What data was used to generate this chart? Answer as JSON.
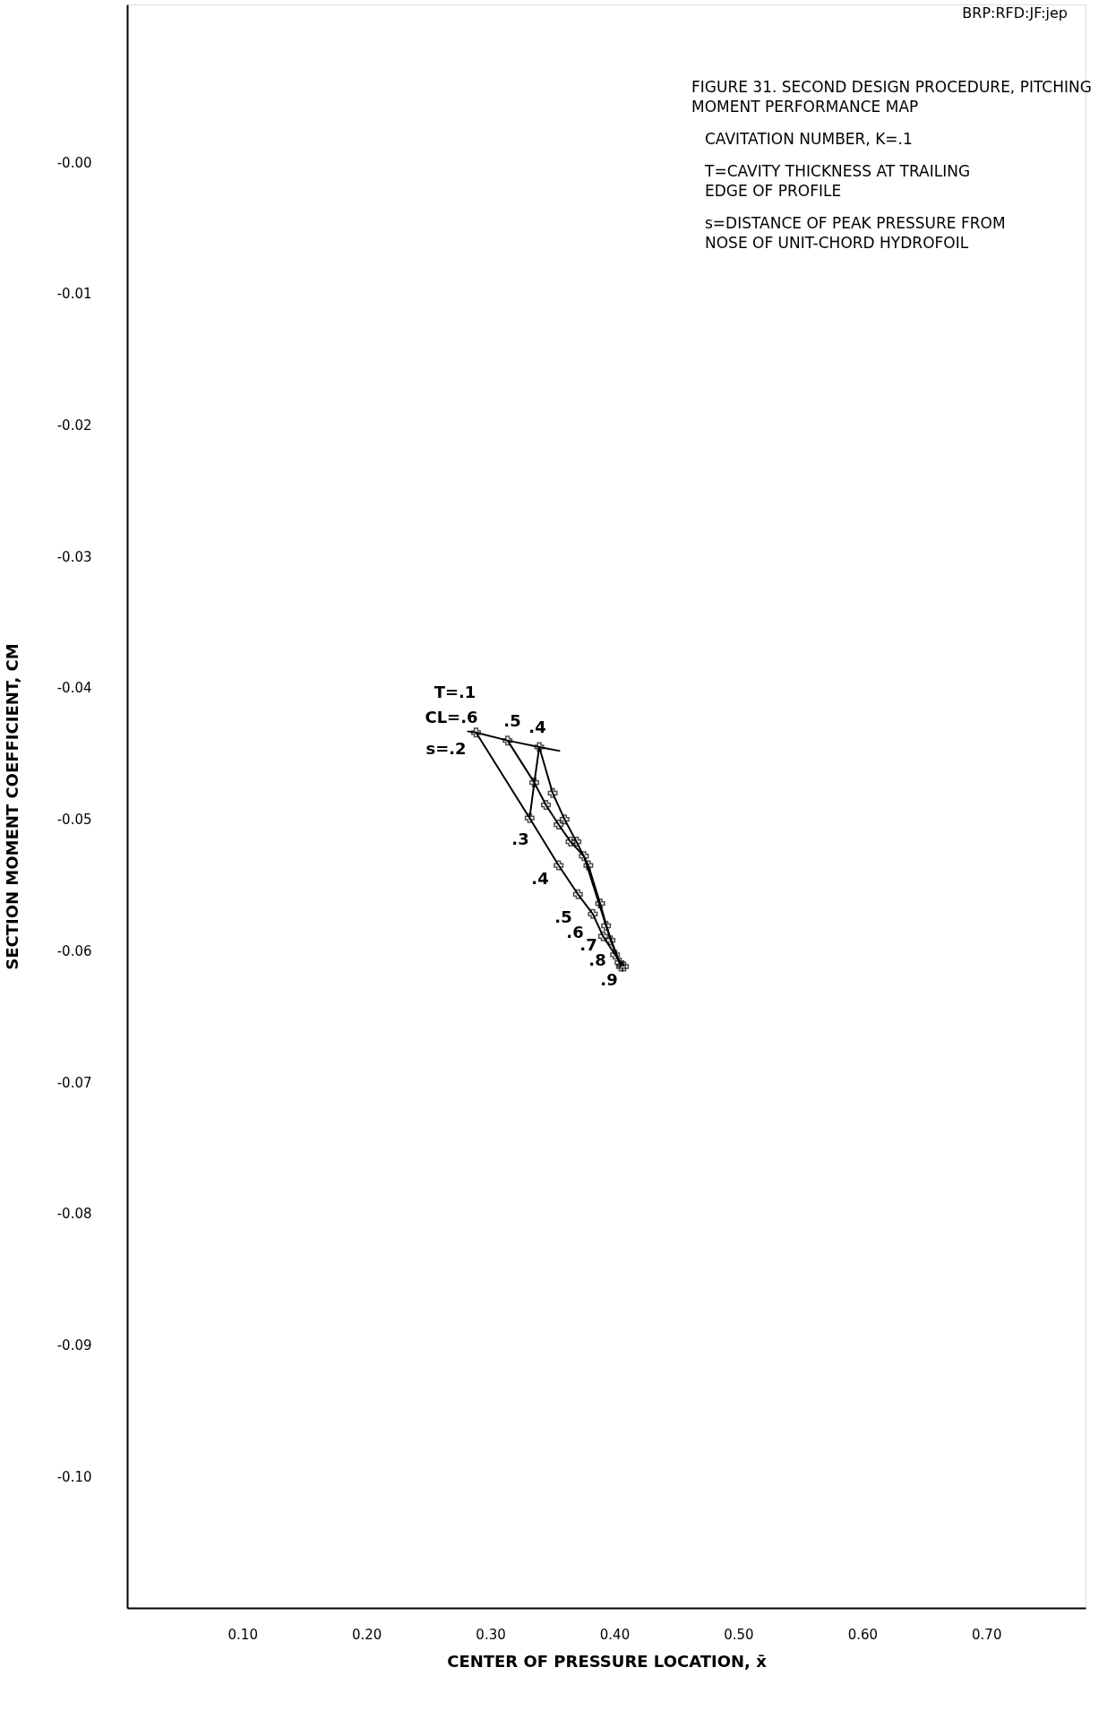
{
  "chart_data": {
    "type": "line",
    "title": "FIGURE 31. SECOND DESIGN PROCEDURE, PITCHING\nMOMENT PERFORMANCE MAP",
    "xlabel": "CENTER OF PRESSURE LOCATION, x̄",
    "ylabel": "SECTION MOMENT COEFFICIENT, CM",
    "xlim": [
      0.007,
      0.78
    ],
    "ylim": [
      -0.11,
      0.012
    ],
    "xticks": [
      {
        "value": 0.1,
        "label": "0.10"
      },
      {
        "value": 0.2,
        "label": "0.20"
      },
      {
        "value": 0.3,
        "label": "0.30"
      },
      {
        "value": 0.4,
        "label": "0.40"
      },
      {
        "value": 0.5,
        "label": "0.50"
      },
      {
        "value": 0.6,
        "label": "0.60"
      },
      {
        "value": 0.7,
        "label": "0.70"
      }
    ],
    "yticks": [
      {
        "value": 0,
        "label": "-0.00"
      },
      -0.01,
      -0.02,
      -0.03,
      -0.04,
      -0.05,
      -0.06,
      -0.07,
      -0.08,
      -0.09,
      {
        "value": -0.1,
        "label": "-0.10"
      }
    ],
    "grid": false,
    "marker": "cross",
    "line_style": "solid",
    "series": [
      {
        "color": "#000000",
        "x": [
          0.2884,
          0.3316,
          0.355,
          0.3706,
          0.3826,
          0.3909,
          0.4005,
          0.4077
        ],
        "values": [
          -0.0434,
          -0.0499,
          -0.0535,
          -0.0557,
          -0.0572,
          -0.0589,
          -0.0603,
          -0.0612
        ]
      },
      {
        "color": "#000000",
        "x": [
          0.3138,
          0.3354,
          0.3447,
          0.355,
          0.3646,
          0.3754,
          0.3933,
          0.4041
        ],
        "values": [
          -0.044,
          -0.0472,
          -0.0489,
          -0.0504,
          -0.0517,
          -0.0528,
          -0.0581,
          -0.0609
        ]
      },
      {
        "color": "#000000",
        "x": [
          0.3394,
          0.3502,
          0.3598,
          0.3694,
          0.379,
          0.3885,
          0.3969,
          0.4053
        ],
        "values": [
          -0.0445,
          -0.048,
          -0.05,
          -0.0517,
          -0.0535,
          -0.0564,
          -0.0592,
          -0.0612
        ]
      },
      {
        "color": "#000000",
        "marker": "none",
        "x": [
          0.2813,
          0.2884,
          0.3138,
          0.3394,
          0.3562
        ],
        "values": [
          -0.0433,
          -0.0434,
          -0.044,
          -0.0445,
          -0.0448
        ]
      },
      {
        "color": "#000000",
        "marker": "none",
        "x": [
          0.3316,
          0.3354,
          0.3394
        ],
        "values": [
          -0.0499,
          -0.0472,
          -0.0445
        ]
      }
    ],
    "annotations": [
      "BRP:RFD:JF:jep",
      "CAVITATION NUMBER, K=.1",
      "T=CAVITY THICKNESS AT TRAILING\nEDGE OF PROFILE",
      "s=DISTANCE OF PEAK PRESSURE FROM\nNOSE OF UNIT-CHORD HYDROFOIL",
      "T=.1",
      "CL=.6",
      ".5",
      ".4",
      "s=.2",
      ".3",
      ".4",
      ".5",
      ".6",
      ".7",
      ".8",
      ".9"
    ]
  }
}
